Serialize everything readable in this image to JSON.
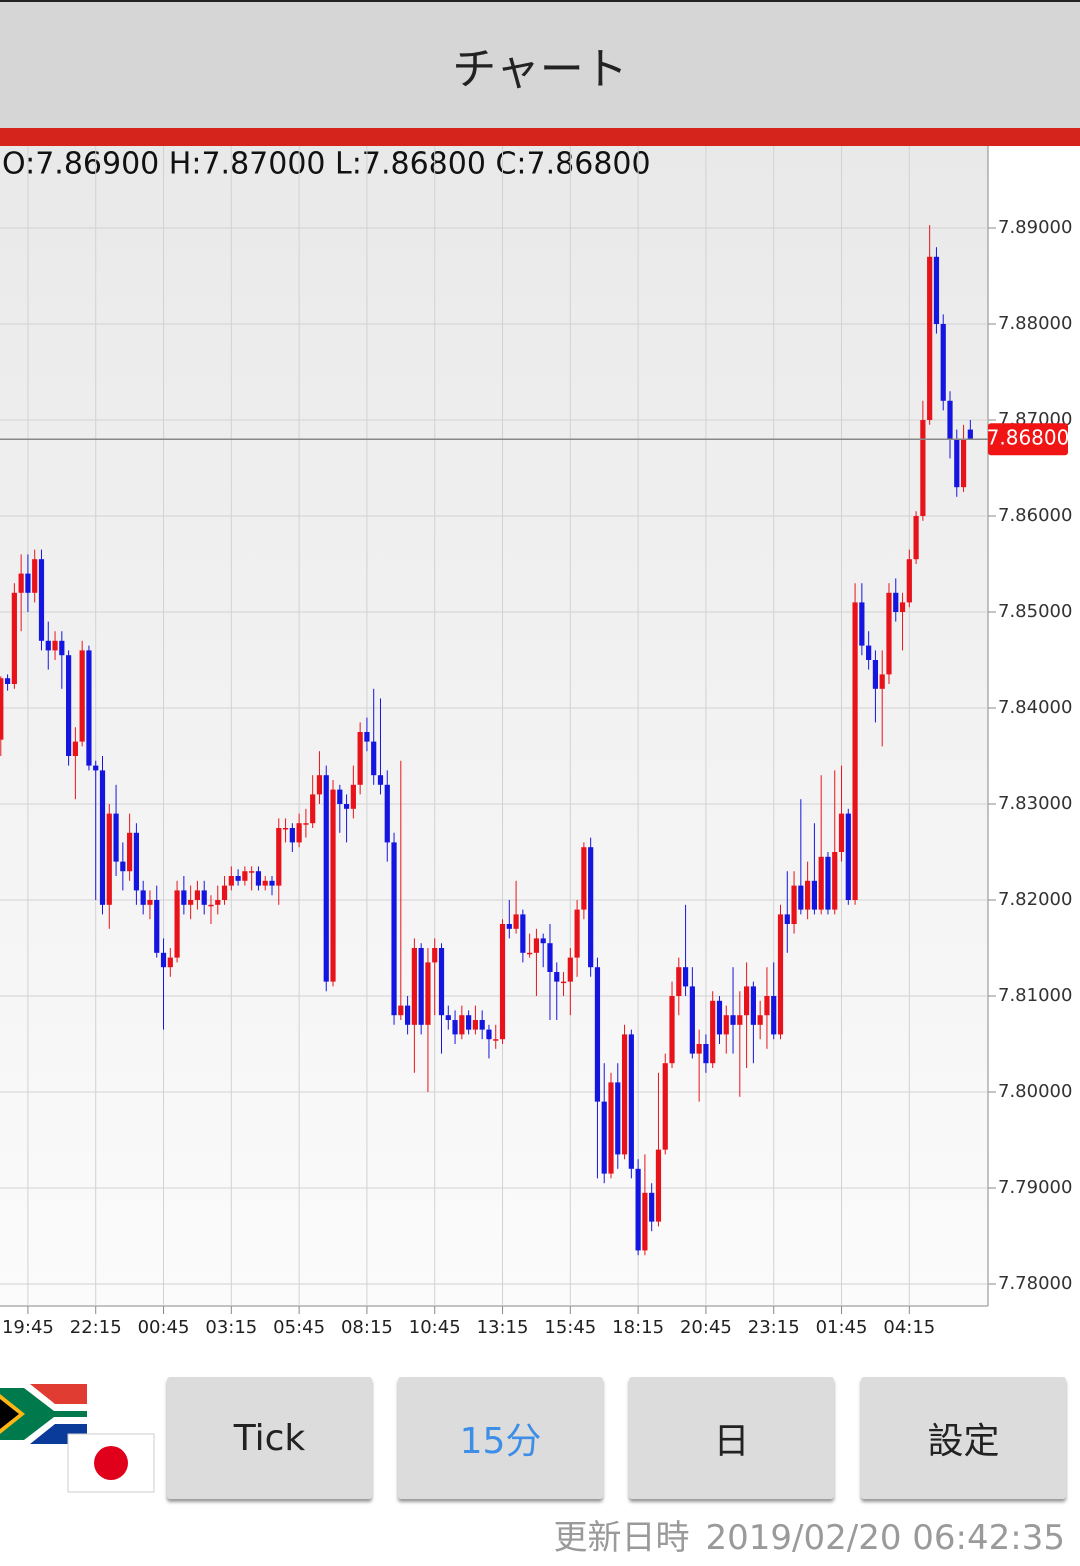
{
  "header": {
    "title": "チャート"
  },
  "chart_data": {
    "type": "candlestick",
    "ohlc_text": "O:7.86900 H:7.87000 L:7.86800 C:7.86800",
    "up_color": "#e8131a",
    "down_color": "#1515e0",
    "grid": true,
    "ylim": [
      7.77771,
      7.89854
    ],
    "yticks": [
      {
        "value": 7.78,
        "label": "7.78000"
      },
      {
        "value": 7.79,
        "label": "7.79000"
      },
      {
        "value": 7.8,
        "label": "7.80000"
      },
      {
        "value": 7.81,
        "label": "7.81000"
      },
      {
        "value": 7.82,
        "label": "7.82000"
      },
      {
        "value": 7.83,
        "label": "7.83000"
      },
      {
        "value": 7.84,
        "label": "7.84000"
      },
      {
        "value": 7.85,
        "label": "7.85000"
      },
      {
        "value": 7.86,
        "label": "7.86000"
      },
      {
        "value": 7.87,
        "label": "7.87000"
      },
      {
        "value": 7.88,
        "label": "7.88000"
      },
      {
        "value": 7.89,
        "label": "7.89000"
      }
    ],
    "price_line": {
      "value": 7.868,
      "label": "7.86800"
    },
    "categories": [
      null,
      null,
      null,
      null,
      "19:45",
      null,
      null,
      null,
      null,
      null,
      null,
      null,
      null,
      null,
      "22:15",
      null,
      null,
      null,
      null,
      null,
      null,
      null,
      null,
      null,
      "00:45",
      null,
      null,
      null,
      null,
      null,
      null,
      null,
      null,
      null,
      "03:15",
      null,
      null,
      null,
      null,
      null,
      null,
      null,
      null,
      null,
      "05:45",
      null,
      null,
      null,
      null,
      null,
      null,
      null,
      null,
      null,
      "08:15",
      null,
      null,
      null,
      null,
      null,
      null,
      null,
      null,
      null,
      "10:45",
      null,
      null,
      null,
      null,
      null,
      null,
      null,
      null,
      null,
      "13:15",
      null,
      null,
      null,
      null,
      null,
      null,
      null,
      null,
      null,
      "15:45",
      null,
      null,
      null,
      null,
      null,
      null,
      null,
      null,
      null,
      "18:15",
      null,
      null,
      null,
      null,
      null,
      null,
      null,
      null,
      null,
      "20:45",
      null,
      null,
      null,
      null,
      null,
      null,
      null,
      null,
      null,
      "23:15",
      null,
      null,
      null,
      null,
      null,
      null,
      null,
      null,
      null,
      "01:45",
      null,
      null,
      null,
      null,
      null,
      null,
      null,
      null,
      null,
      "04:15",
      null,
      null,
      null,
      null,
      null,
      null,
      null,
      null,
      null
    ],
    "open": [
      7.8367,
      7.8431,
      7.8425,
      7.852,
      7.854,
      7.852,
      7.8555,
      7.847,
      7.846,
      7.847,
      7.8455,
      7.835,
      7.8365,
      7.846,
      7.834,
      7.8335,
      7.8195,
      7.829,
      7.824,
      7.823,
      7.827,
      7.821,
      7.8195,
      7.82,
      7.8145,
      7.813,
      7.814,
      7.821,
      7.8195,
      7.82,
      7.821,
      7.8195,
      7.8195,
      7.82,
      7.8215,
      7.8225,
      7.822,
      7.823,
      7.823,
      7.8215,
      7.822,
      7.8215,
      7.8275,
      7.8275,
      7.826,
      7.828,
      7.828,
      7.831,
      7.833,
      7.8115,
      7.8315,
      7.83,
      7.8295,
      7.832,
      7.8375,
      7.8365,
      7.833,
      7.832,
      7.826,
      7.808,
      7.809,
      7.807,
      7.815,
      7.807,
      7.8135,
      7.815,
      7.808,
      7.8075,
      7.806,
      7.808,
      7.8065,
      7.8075,
      7.8065,
      7.8055,
      7.8055,
      7.8175,
      7.817,
      7.8185,
      7.8145,
      7.8145,
      7.816,
      7.8155,
      7.8125,
      7.8115,
      7.8115,
      7.814,
      7.819,
      7.8255,
      7.813,
      7.799,
      7.7915,
      7.801,
      7.7935,
      7.806,
      7.792,
      7.7835,
      7.7895,
      7.7865,
      7.794,
      7.803,
      7.81,
      7.813,
      7.811,
      7.804,
      7.805,
      7.803,
      7.8095,
      7.806,
      7.808,
      7.807,
      7.808,
      7.811,
      7.807,
      7.808,
      7.81,
      7.806,
      7.8185,
      7.8175,
      7.8215,
      7.819,
      7.822,
      7.819,
      7.8245,
      7.819,
      7.825,
      7.829,
      7.82,
      7.851,
      7.8465,
      7.845,
      7.842,
      7.8435,
      7.852,
      7.85,
      7.851,
      7.8555,
      7.86,
      7.87,
      7.887,
      7.88,
      7.872,
      7.868,
      7.863,
      7.869
    ],
    "high": [
      7.8433,
      7.8435,
      7.853,
      7.856,
      7.856,
      7.8565,
      7.8565,
      7.849,
      7.848,
      7.848,
      7.846,
      7.838,
      7.847,
      7.8465,
      7.8345,
      7.835,
      7.83,
      7.832,
      7.826,
      7.829,
      7.828,
      7.822,
      7.821,
      7.8215,
      7.816,
      7.815,
      7.822,
      7.8225,
      7.8215,
      7.822,
      7.822,
      7.8205,
      7.8215,
      7.8225,
      7.8235,
      7.8232,
      7.8235,
      7.8235,
      7.8235,
      7.8225,
      7.8225,
      7.8285,
      7.8285,
      7.828,
      7.829,
      7.8295,
      7.833,
      7.8355,
      7.834,
      7.8325,
      7.832,
      7.831,
      7.834,
      7.8385,
      7.839,
      7.842,
      7.841,
      7.8335,
      7.827,
      7.8345,
      7.81,
      7.816,
      7.8155,
      7.815,
      7.816,
      7.8155,
      7.809,
      7.8085,
      7.809,
      7.8085,
      7.809,
      7.8085,
      7.807,
      7.807,
      7.818,
      7.82,
      7.822,
      7.819,
      7.8165,
      7.817,
      7.8165,
      7.8175,
      7.8135,
      7.8125,
      7.815,
      7.82,
      7.826,
      7.8265,
      7.814,
      7.803,
      7.802,
      7.803,
      7.807,
      7.8065,
      7.793,
      7.7935,
      7.7905,
      7.802,
      7.804,
      7.8115,
      7.814,
      7.8195,
      7.813,
      7.8065,
      7.806,
      7.8105,
      7.81,
      7.809,
      7.813,
      7.8105,
      7.8135,
      7.8115,
      7.8095,
      7.813,
      7.8135,
      7.8195,
      7.823,
      7.823,
      7.8305,
      7.824,
      7.828,
      7.833,
      7.825,
      7.8335,
      7.834,
      7.8295,
      7.853,
      7.853,
      7.848,
      7.846,
      7.846,
      7.853,
      7.8535,
      7.852,
      7.8565,
      7.8605,
      7.872,
      7.8903,
      7.888,
      7.881,
      7.873,
      7.869,
      7.8695,
      7.87
    ],
    "low": [
      7.835,
      7.8418,
      7.842,
      7.848,
      7.85,
      7.851,
      7.846,
      7.844,
      7.845,
      7.842,
      7.834,
      7.8305,
      7.836,
      7.8335,
      7.82,
      7.8185,
      7.817,
      7.8225,
      7.821,
      7.822,
      7.8195,
      7.8185,
      7.818,
      7.814,
      7.8065,
      7.812,
      7.8135,
      7.8185,
      7.818,
      7.819,
      7.8185,
      7.8175,
      7.8185,
      7.8195,
      7.821,
      7.8215,
      7.8215,
      7.821,
      7.821,
      7.821,
      7.8205,
      7.8195,
      7.826,
      7.825,
      7.8255,
      7.8265,
      7.8275,
      7.83,
      7.8105,
      7.811,
      7.827,
      7.826,
      7.8285,
      7.831,
      7.8355,
      7.832,
      7.831,
      7.824,
      7.807,
      7.8075,
      7.806,
      7.802,
      7.806,
      7.8,
      7.808,
      7.804,
      7.8065,
      7.805,
      7.8055,
      7.806,
      7.806,
      7.8055,
      7.8035,
      7.8045,
      7.805,
      7.816,
      7.8165,
      7.8135,
      7.814,
      7.81,
      7.813,
      7.8075,
      7.8075,
      7.81,
      7.808,
      7.812,
      7.818,
      7.812,
      7.791,
      7.7905,
      7.791,
      7.792,
      7.793,
      7.791,
      7.783,
      7.783,
      7.7855,
      7.786,
      7.7935,
      7.8025,
      7.808,
      7.81,
      7.8035,
      7.799,
      7.802,
      7.8025,
      7.805,
      7.804,
      7.804,
      7.7995,
      7.8025,
      7.803,
      7.8055,
      7.8045,
      7.8055,
      7.8055,
      7.8145,
      7.8165,
      7.8185,
      7.818,
      7.8185,
      7.8185,
      7.8185,
      7.8185,
      7.824,
      7.8195,
      7.8195,
      7.8455,
      7.844,
      7.8385,
      7.836,
      7.8425,
      7.849,
      7.846,
      7.8505,
      7.855,
      7.8595,
      7.8695,
      7.879,
      7.871,
      7.866,
      7.862,
      7.8625,
      7.868
    ],
    "close": [
      7.8431,
      7.8425,
      7.852,
      7.854,
      7.852,
      7.8555,
      7.847,
      7.846,
      7.847,
      7.8455,
      7.835,
      7.8365,
      7.846,
      7.834,
      7.8335,
      7.8195,
      7.829,
      7.824,
      7.823,
      7.827,
      7.821,
      7.8195,
      7.82,
      7.8145,
      7.813,
      7.814,
      7.821,
      7.8195,
      7.82,
      7.821,
      7.8195,
      7.8195,
      7.82,
      7.8215,
      7.8225,
      7.822,
      7.823,
      7.823,
      7.8215,
      7.822,
      7.8215,
      7.8275,
      7.8275,
      7.826,
      7.828,
      7.828,
      7.831,
      7.833,
      7.8115,
      7.8315,
      7.83,
      7.8295,
      7.832,
      7.8375,
      7.8365,
      7.833,
      7.832,
      7.826,
      7.808,
      7.809,
      7.807,
      7.815,
      7.807,
      7.8135,
      7.815,
      7.808,
      7.8075,
      7.806,
      7.808,
      7.8065,
      7.8075,
      7.8065,
      7.8055,
      7.8055,
      7.8175,
      7.817,
      7.8185,
      7.8145,
      7.8145,
      7.816,
      7.8155,
      7.8125,
      7.8115,
      7.8115,
      7.814,
      7.819,
      7.8255,
      7.813,
      7.799,
      7.7915,
      7.801,
      7.7935,
      7.806,
      7.792,
      7.7835,
      7.7895,
      7.7865,
      7.794,
      7.803,
      7.81,
      7.813,
      7.811,
      7.804,
      7.805,
      7.803,
      7.8095,
      7.806,
      7.808,
      7.807,
      7.808,
      7.811,
      7.807,
      7.808,
      7.81,
      7.806,
      7.8185,
      7.8175,
      7.8215,
      7.819,
      7.822,
      7.819,
      7.8245,
      7.819,
      7.825,
      7.829,
      7.82,
      7.851,
      7.8465,
      7.845,
      7.842,
      7.8435,
      7.852,
      7.85,
      7.851,
      7.8555,
      7.86,
      7.87,
      7.887,
      7.88,
      7.872,
      7.868,
      7.863,
      7.868,
      7.868
    ]
  },
  "buttons": [
    "Tick",
    "15分",
    "日",
    "設定"
  ],
  "footer": {
    "label": "更新日時",
    "datetime": "2019/02/20 06:42:35"
  }
}
